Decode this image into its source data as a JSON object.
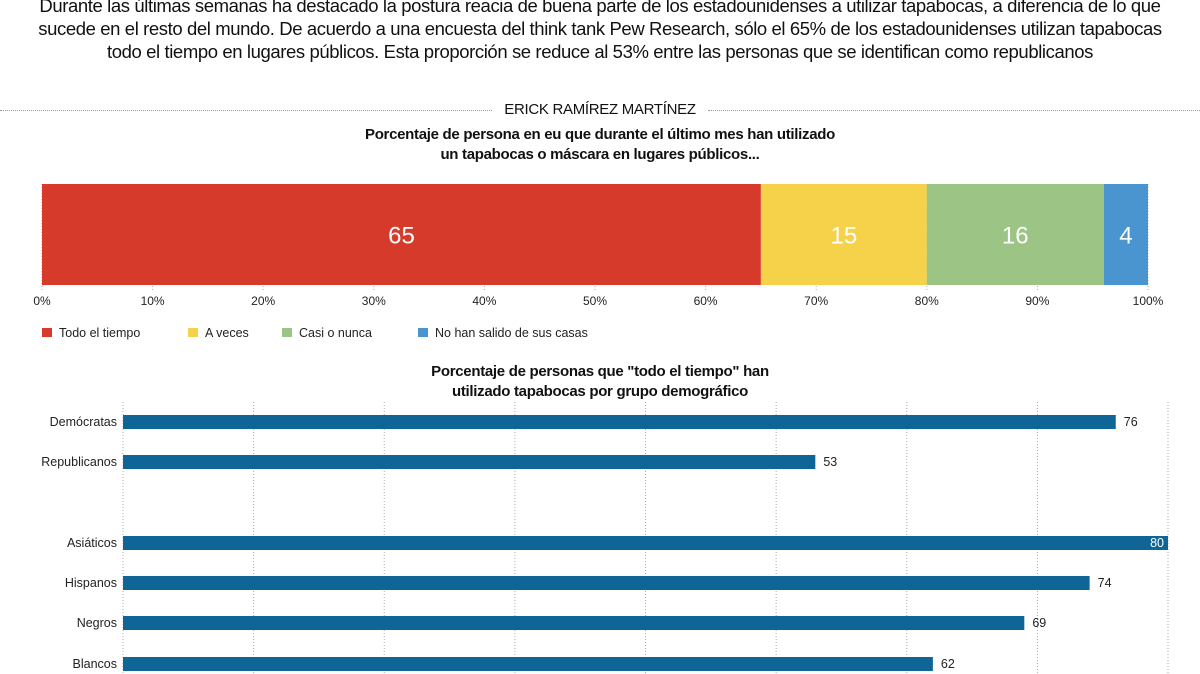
{
  "intro": "Durante las últimas semanas ha destacado la postura reacia de buena parte de los estadounidenses a utilizar tapabocas, a diferencia de lo que sucede en el resto del mundo. De acuerdo a una encuesta del think tank Pew Research, sólo el 65% de los estadounidenses utilizan tapabocas todo el tiempo en lugares públicos. Esta proporción se reduce al 53% entre las personas que se identifican como republicanos",
  "byline": "ERICK RAMÍREZ MARTÍNEZ",
  "chart_data": [
    {
      "type": "bar",
      "stacked": true,
      "orientation": "horizontal",
      "title_line1": "Porcentaje de persona en eu que durante el último mes han utilizado",
      "title_line2": "un tapabocas o máscara en lugares públicos...",
      "series": [
        {
          "name": "Todo el tiempo",
          "value": 65,
          "color": "#d63a2a"
        },
        {
          "name": "A veces",
          "value": 15,
          "color": "#f5d24a"
        },
        {
          "name": "Casi o nunca",
          "value": 16,
          "color": "#9cc585"
        },
        {
          "name": "No han salido de sus casas",
          "value": 4,
          "color": "#4a95d0"
        }
      ],
      "xlim": [
        0,
        100
      ],
      "ticks": [
        "0%",
        "10%",
        "20%",
        "30%",
        "40%",
        "50%",
        "60%",
        "70%",
        "80%",
        "90%",
        "100%"
      ],
      "legend": "bottom-left",
      "grid": true
    },
    {
      "type": "bar",
      "orientation": "horizontal",
      "title_line1": "Porcentaje de personas que \"todo el tiempo\" han",
      "title_line2": "utilizado tapabocas por grupo demográfico",
      "categories": [
        "Demócratas",
        "Republicanos",
        "Asiáticos",
        "Hispanos",
        "Negros",
        "Blancos"
      ],
      "values": [
        76,
        53,
        80,
        74,
        69,
        62
      ],
      "color": "#0f6596",
      "xlim": [
        0,
        80
      ],
      "grid": true
    }
  ]
}
